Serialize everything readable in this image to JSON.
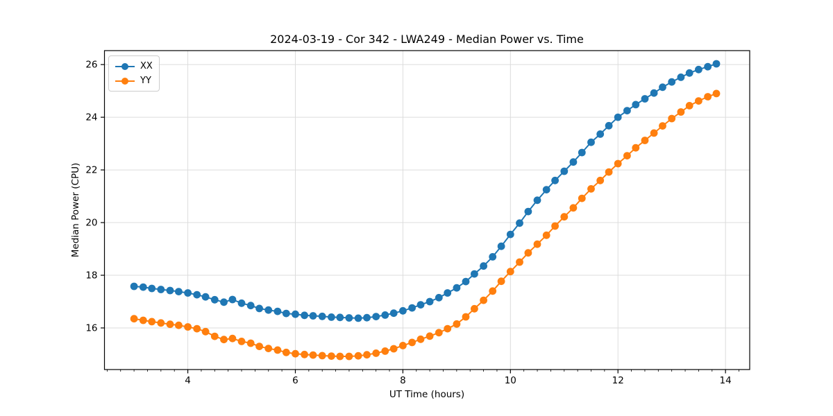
{
  "figure": {
    "title": "2024-03-19 - Cor 342 - LWA249 - Median Power vs. Time",
    "xlabel": "UT Time (hours)",
    "ylabel": "Median Power (CPU)"
  },
  "legend": {
    "items": [
      {
        "label": "XX",
        "color": "#1f77b4"
      },
      {
        "label": "YY",
        "color": "#ff7f0e"
      }
    ]
  },
  "colors": {
    "series_xx": "#1f77b4",
    "series_yy": "#ff7f0e",
    "grid": "#dcdcdc",
    "spine": "#000000",
    "text": "#000000"
  },
  "chart_data": {
    "type": "line",
    "title": "2024-03-19 - Cor 342 - LWA249 - Median Power vs. Time",
    "xlabel": "UT Time (hours)",
    "ylabel": "Median Power (CPU)",
    "xlim": [
      2.45,
      14.45
    ],
    "ylim": [
      14.42,
      26.53
    ],
    "x_major_ticks": [
      4,
      6,
      8,
      10,
      12,
      14
    ],
    "x_tick_labels": [
      "4",
      "6",
      "8",
      "10",
      "12",
      "14"
    ],
    "x_minor_tick_step": 0.25,
    "y_major_ticks": [
      16,
      18,
      20,
      22,
      24,
      26
    ],
    "y_tick_labels": [
      "16",
      "18",
      "20",
      "22",
      "24",
      "26"
    ],
    "grid": true,
    "legend_position": "upper-left",
    "marker": "circle",
    "x": [
      3.0,
      3.17,
      3.33,
      3.5,
      3.67,
      3.83,
      4.0,
      4.17,
      4.33,
      4.5,
      4.67,
      4.83,
      5.0,
      5.17,
      5.33,
      5.5,
      5.67,
      5.83,
      6.0,
      6.17,
      6.33,
      6.5,
      6.67,
      6.83,
      7.0,
      7.17,
      7.33,
      7.5,
      7.67,
      7.83,
      8.0,
      8.17,
      8.33,
      8.5,
      8.67,
      8.83,
      9.0,
      9.17,
      9.33,
      9.5,
      9.67,
      9.83,
      10.0,
      10.17,
      10.33,
      10.5,
      10.67,
      10.83,
      11.0,
      11.17,
      11.33,
      11.5,
      11.67,
      11.83,
      12.0,
      12.17,
      12.33,
      12.5,
      12.67,
      12.83,
      13.0,
      13.17,
      13.33,
      13.5,
      13.67,
      13.83
    ],
    "series": [
      {
        "name": "XX",
        "color": "#1f77b4",
        "values": [
          17.58,
          17.55,
          17.5,
          17.46,
          17.42,
          17.38,
          17.33,
          17.26,
          17.18,
          17.07,
          16.98,
          17.08,
          16.94,
          16.85,
          16.74,
          16.68,
          16.63,
          16.55,
          16.52,
          16.48,
          16.46,
          16.44,
          16.41,
          16.4,
          16.38,
          16.37,
          16.39,
          16.43,
          16.49,
          16.56,
          16.65,
          16.76,
          16.88,
          17.0,
          17.15,
          17.33,
          17.52,
          17.76,
          18.05,
          18.35,
          18.7,
          19.1,
          19.55,
          19.98,
          20.42,
          20.85,
          21.25,
          21.6,
          21.95,
          22.3,
          22.66,
          23.05,
          23.36,
          23.68,
          24.0,
          24.25,
          24.48,
          24.7,
          24.92,
          25.14,
          25.34,
          25.52,
          25.68,
          25.81,
          25.92,
          26.03
        ]
      },
      {
        "name": "YY",
        "color": "#ff7f0e",
        "values": [
          16.35,
          16.29,
          16.24,
          16.19,
          16.14,
          16.1,
          16.04,
          15.97,
          15.86,
          15.68,
          15.56,
          15.6,
          15.49,
          15.42,
          15.3,
          15.22,
          15.16,
          15.07,
          15.02,
          14.99,
          14.97,
          14.95,
          14.93,
          14.92,
          14.92,
          14.94,
          14.98,
          15.04,
          15.12,
          15.21,
          15.33,
          15.45,
          15.57,
          15.69,
          15.82,
          15.97,
          16.15,
          16.42,
          16.73,
          17.05,
          17.4,
          17.77,
          18.14,
          18.5,
          18.85,
          19.18,
          19.52,
          19.87,
          20.22,
          20.56,
          20.92,
          21.28,
          21.6,
          21.92,
          22.24,
          22.54,
          22.84,
          23.12,
          23.4,
          23.67,
          23.95,
          24.2,
          24.44,
          24.62,
          24.78,
          24.9
        ]
      }
    ]
  }
}
